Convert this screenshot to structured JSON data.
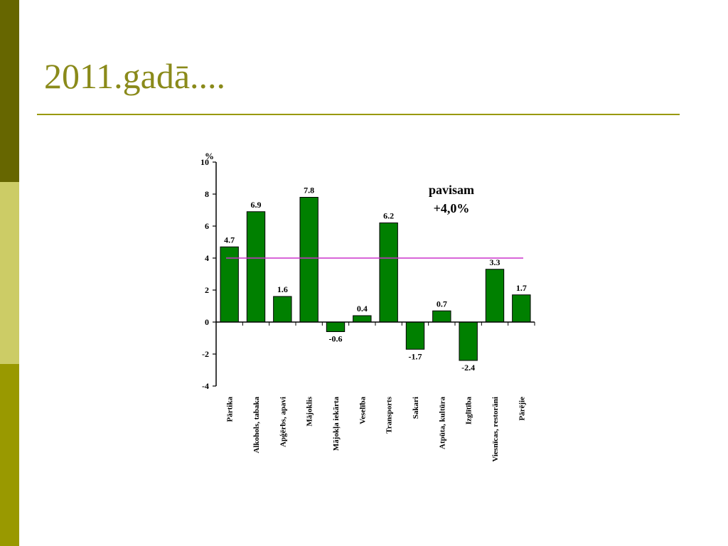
{
  "slide": {
    "title": "2011.gadā....",
    "accent_color": "#999900",
    "sidebar_colors": [
      "#666600",
      "#cccc66",
      "#999900"
    ]
  },
  "chart_data": {
    "type": "bar",
    "ylabel": "%",
    "ylim": [
      -4,
      10
    ],
    "yticks": [
      10,
      8,
      6,
      4,
      2,
      0,
      -2,
      -4
    ],
    "categories": [
      "Pārtika",
      "Alkohols, tabaka",
      "Apģērbs, apavi",
      "Mājoklis",
      "Mājokļa iekārta",
      "Veselība",
      "Transports",
      "Sakari",
      "Atpūta, kultūra",
      "Izglītība",
      "Viesnīcas, restorāni",
      "Pārējie"
    ],
    "values": [
      4.7,
      6.9,
      1.6,
      7.8,
      -0.6,
      0.4,
      6.2,
      -1.7,
      0.7,
      -2.4,
      3.3,
      1.7
    ],
    "value_labels": [
      "4.7",
      "6.9",
      "1.6",
      "7.8",
      "-0.6",
      "0.4",
      "6.2",
      "-1.7",
      "0.7",
      "-2.4",
      "3.3",
      "1.7"
    ],
    "reference_line": {
      "value": 4.0,
      "color": "#cc33cc"
    },
    "annotation": {
      "line1": "pavisam",
      "line2": "+4,0%"
    },
    "bar_color": "#008000",
    "grid": false,
    "legend": "none"
  }
}
